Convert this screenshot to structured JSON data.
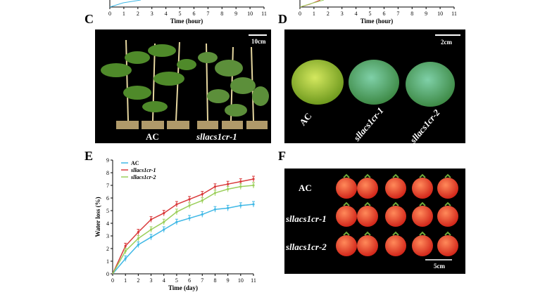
{
  "panels": {
    "top_left": {
      "xlabel": "Time (hour)",
      "ticks": [
        "0",
        "1",
        "2",
        "3",
        "4",
        "5",
        "6",
        "7",
        "8",
        "9",
        "10",
        "11"
      ]
    },
    "top_right": {
      "xlabel": "Time (hour)",
      "ticks": [
        "0",
        "1",
        "2",
        "3",
        "4",
        "5",
        "6",
        "7",
        "8",
        "9",
        "10",
        "11"
      ]
    },
    "C": {
      "letter": "C",
      "scale": "10cm",
      "label_left": "AC",
      "label_right": "sllacs1cr-1"
    },
    "D": {
      "letter": "D",
      "scale": "2cm",
      "labels": [
        "AC",
        "sllacs1cr-1",
        "sllacs1cr-2"
      ]
    },
    "E": {
      "letter": "E"
    },
    "F": {
      "letter": "F",
      "rows": [
        "AC",
        "sllacs1cr-1",
        "sllacs1cr-2"
      ],
      "scale": "5cm"
    }
  },
  "chart_data": {
    "type": "line",
    "xlabel": "Time (day)",
    "ylabel": "Water loss (%)",
    "x": [
      0,
      1,
      2,
      3,
      4,
      5,
      6,
      7,
      8,
      9,
      10,
      11
    ],
    "xlim": [
      0,
      11
    ],
    "ylim": [
      0,
      9
    ],
    "yticks": [
      0,
      1,
      2,
      3,
      4,
      5,
      6,
      7,
      8,
      9
    ],
    "legend_position": "top-left",
    "series": [
      {
        "name": "AC",
        "color": "#3fb8e6",
        "values": [
          0,
          1.2,
          2.3,
          2.9,
          3.5,
          4.1,
          4.4,
          4.7,
          5.1,
          5.2,
          5.4,
          5.5
        ]
      },
      {
        "name": "sllacs1cr-1",
        "color": "#d9393a",
        "values": [
          0,
          2.2,
          3.3,
          4.3,
          4.8,
          5.5,
          5.9,
          6.3,
          6.9,
          7.1,
          7.3,
          7.5
        ]
      },
      {
        "name": "sllacs1cr-2",
        "color": "#9bcf5a",
        "values": [
          0,
          1.8,
          2.8,
          3.5,
          4.1,
          4.9,
          5.4,
          5.8,
          6.4,
          6.7,
          6.9,
          7.0
        ]
      }
    ]
  }
}
